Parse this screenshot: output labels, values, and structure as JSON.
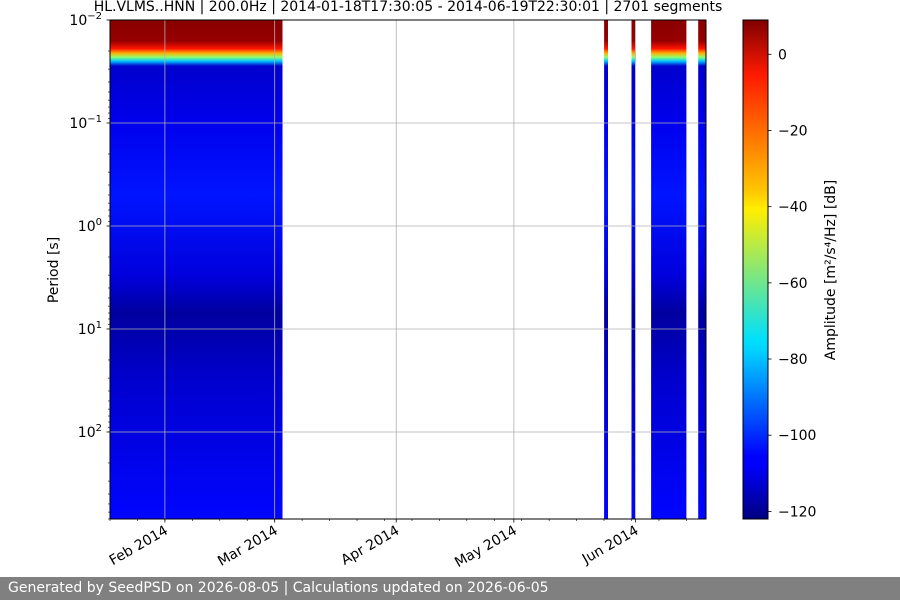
{
  "chart_data": {
    "type": "heatmap",
    "title": "HL.VLMS..HNN | 200.0Hz | 2014-01-18T17:30:05 - 2014-06-19T22:30:01 | 2701 segments",
    "ylabel": "Period [s]",
    "y_scale": "log",
    "y_inverted": true,
    "ylim": [
      0.01,
      700
    ],
    "x_range": [
      "2014-01-18",
      "2014-06-19"
    ],
    "x_ticks": [
      {
        "date": "2014-02-01",
        "label": "Feb 2014"
      },
      {
        "date": "2014-03-01",
        "label": "Mar 2014"
      },
      {
        "date": "2014-04-01",
        "label": "Apr 2014"
      },
      {
        "date": "2014-05-01",
        "label": "May 2014"
      },
      {
        "date": "2014-06-01",
        "label": "Jun 2014"
      }
    ],
    "y_ticks": [
      {
        "value": 0.01,
        "base": "10",
        "exp": "−2"
      },
      {
        "value": 0.1,
        "base": "10",
        "exp": "−1"
      },
      {
        "value": 1,
        "base": "10",
        "exp": "0"
      },
      {
        "value": 10,
        "base": "10",
        "exp": "1"
      },
      {
        "value": 100,
        "base": "10",
        "exp": "2"
      }
    ],
    "grid": true,
    "colormap": "jet",
    "colorbar": {
      "label": "Amplitude [m²/s⁴/Hz] [dB]",
      "range": [
        -122,
        9
      ],
      "ticks": [
        0,
        -20,
        -40,
        -60,
        -80,
        -100,
        -120
      ],
      "tick_labels": [
        "0",
        "−20",
        "−40",
        "−60",
        "−80",
        "−100",
        "−120"
      ]
    },
    "data_periods": [
      {
        "start": "2014-01-18",
        "end": "2014-03-03"
      },
      {
        "start": "2014-05-24",
        "end": "2014-05-25"
      },
      {
        "start": "2014-05-31",
        "end": "2014-06-01"
      },
      {
        "start": "2014-06-05",
        "end": "2014-06-14"
      },
      {
        "start": "2014-06-17",
        "end": "2014-06-19"
      }
    ],
    "amplitude_profile": [
      {
        "period": 0.01,
        "db": 8
      },
      {
        "period": 0.016,
        "db": 6
      },
      {
        "period": 0.019,
        "db": -10
      },
      {
        "period": 0.021,
        "db": -30
      },
      {
        "period": 0.023,
        "db": -55
      },
      {
        "period": 0.025,
        "db": -80
      },
      {
        "period": 0.028,
        "db": -112
      },
      {
        "period": 0.1,
        "db": -108
      },
      {
        "period": 0.5,
        "db": -103
      },
      {
        "period": 3,
        "db": -110
      },
      {
        "period": 7,
        "db": -118
      },
      {
        "period": 30,
        "db": -112
      },
      {
        "period": 700,
        "db": -105
      }
    ]
  },
  "footer": {
    "text": "Generated by SeedPSD on 2026-08-05 | Calculations updated on 2026-06-05"
  }
}
